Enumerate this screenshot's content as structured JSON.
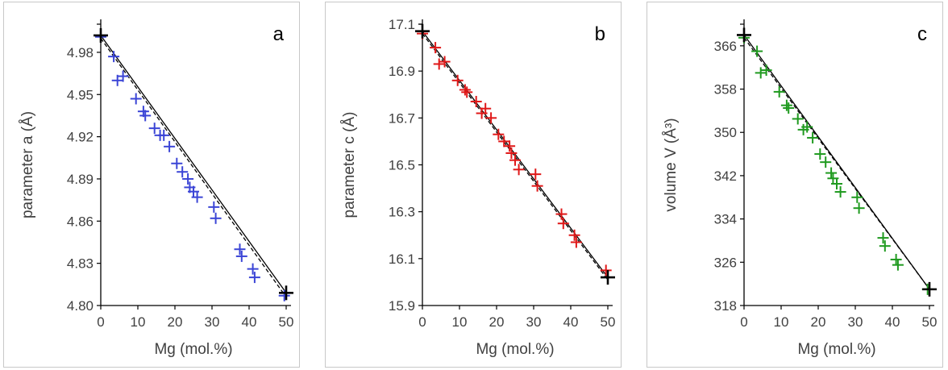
{
  "chart_data": [
    {
      "panel": "a",
      "type": "scatter",
      "panel_label": "a",
      "xlabel": "Mg (mol.%)",
      "ylabel": "parameter a (Å)",
      "xlim": [
        0,
        50
      ],
      "ylim": [
        4.8,
        5.0
      ],
      "xticks": [
        0,
        10,
        20,
        30,
        40,
        50
      ],
      "yticks": [
        4.8,
        4.83,
        4.86,
        4.89,
        4.92,
        4.95,
        4.98
      ],
      "ytick_labels": [
        "4.80",
        "4.83",
        "4.86",
        "4.89",
        "4.92",
        "4.95",
        "4.98"
      ],
      "marker_color": "#3b45d6",
      "endpoint_color": "#000000",
      "series": [
        {
          "x": [
            0,
            3.5,
            4.5,
            6,
            9.5,
            11.5,
            12,
            14.5,
            16,
            17,
            18.5,
            20.5,
            22,
            23.5,
            24,
            25,
            26,
            30.5,
            31,
            37.5,
            38,
            41,
            41.5,
            49.5
          ],
          "y": [
            4.991,
            4.977,
            4.96,
            4.963,
            4.947,
            4.938,
            4.935,
            4.926,
            4.921,
            4.921,
            4.913,
            4.901,
            4.895,
            4.89,
            4.884,
            4.881,
            4.877,
            4.87,
            4.862,
            4.84,
            4.835,
            4.826,
            4.82,
            4.807
          ]
        }
      ],
      "endpoints": {
        "x": [
          0,
          50
        ],
        "y": [
          4.992,
          4.809
        ]
      },
      "lines": [
        {
          "style": "solid",
          "x": [
            0,
            50
          ],
          "y": [
            4.992,
            4.809
          ]
        },
        {
          "style": "dashed",
          "x": [
            0,
            50
          ],
          "y": [
            4.99,
            4.806
          ]
        }
      ]
    },
    {
      "panel": "b",
      "type": "scatter",
      "panel_label": "b",
      "xlabel": "Mg (mol.%)",
      "ylabel": "parameter c (Å)",
      "xlim": [
        0,
        50
      ],
      "ylim": [
        15.9,
        17.1
      ],
      "xticks": [
        0,
        10,
        20,
        30,
        40,
        50
      ],
      "yticks": [
        15.9,
        16.1,
        16.3,
        16.5,
        16.7,
        16.9,
        17.1
      ],
      "ytick_labels": [
        "15.9",
        "16.1",
        "16.3",
        "16.5",
        "16.7",
        "16.9",
        "17.1"
      ],
      "marker_color": "#e01818",
      "endpoint_color": "#000000",
      "series": [
        {
          "x": [
            0,
            3.5,
            4.5,
            6,
            9.5,
            11.5,
            12,
            14.5,
            16,
            17,
            18.5,
            20.5,
            22,
            23.5,
            24,
            25,
            26,
            30.5,
            31,
            37.5,
            38,
            41,
            41.5,
            49.5
          ],
          "y": [
            17.06,
            17.0,
            16.93,
            16.94,
            16.86,
            16.82,
            16.81,
            16.77,
            16.72,
            16.74,
            16.7,
            16.63,
            16.6,
            16.58,
            16.55,
            16.52,
            16.48,
            16.46,
            16.41,
            16.29,
            16.25,
            16.2,
            16.17,
            16.05
          ]
        }
      ],
      "endpoints": {
        "x": [
          0,
          50
        ],
        "y": [
          17.07,
          16.02
        ]
      },
      "lines": [
        {
          "style": "solid",
          "x": [
            0,
            50
          ],
          "y": [
            17.07,
            16.02
          ]
        },
        {
          "style": "dashed",
          "x": [
            0,
            50
          ],
          "y": [
            17.06,
            16.01
          ]
        }
      ]
    },
    {
      "panel": "c",
      "type": "scatter",
      "panel_label": "c",
      "xlabel": "Mg (mol.%)",
      "ylabel": "volume V (Å³)",
      "xlim": [
        0,
        50
      ],
      "ylim": [
        318,
        370
      ],
      "xticks": [
        0,
        10,
        20,
        30,
        40,
        50
      ],
      "yticks": [
        318,
        326,
        334,
        342,
        350,
        358,
        366
      ],
      "ytick_labels": [
        "318",
        "326",
        "334",
        "342",
        "350",
        "358",
        "366"
      ],
      "marker_color": "#1f9a1f",
      "endpoint_color": "#000000",
      "series": [
        {
          "x": [
            0,
            3.5,
            4.5,
            6,
            9.5,
            11.5,
            12,
            14.5,
            16,
            17,
            18.5,
            20.5,
            22,
            23.5,
            24,
            25,
            26,
            30.5,
            31,
            37.5,
            38,
            41,
            41.5,
            49.5
          ],
          "y": [
            367.5,
            365,
            361,
            361.5,
            357.5,
            355,
            354.5,
            352.5,
            350.5,
            351,
            349,
            346,
            344.5,
            342.5,
            341.5,
            340.5,
            339,
            338,
            336,
            330.5,
            329,
            326.5,
            325.5,
            321
          ]
        }
      ],
      "endpoints": {
        "x": [
          0,
          50
        ],
        "y": [
          368,
          321
        ]
      },
      "lines": [
        {
          "style": "solid",
          "x": [
            0,
            50
          ],
          "y": [
            368,
            321
          ]
        },
        {
          "style": "dashed",
          "x": [
            0,
            50
          ],
          "y": [
            367.5,
            321
          ]
        }
      ]
    }
  ]
}
